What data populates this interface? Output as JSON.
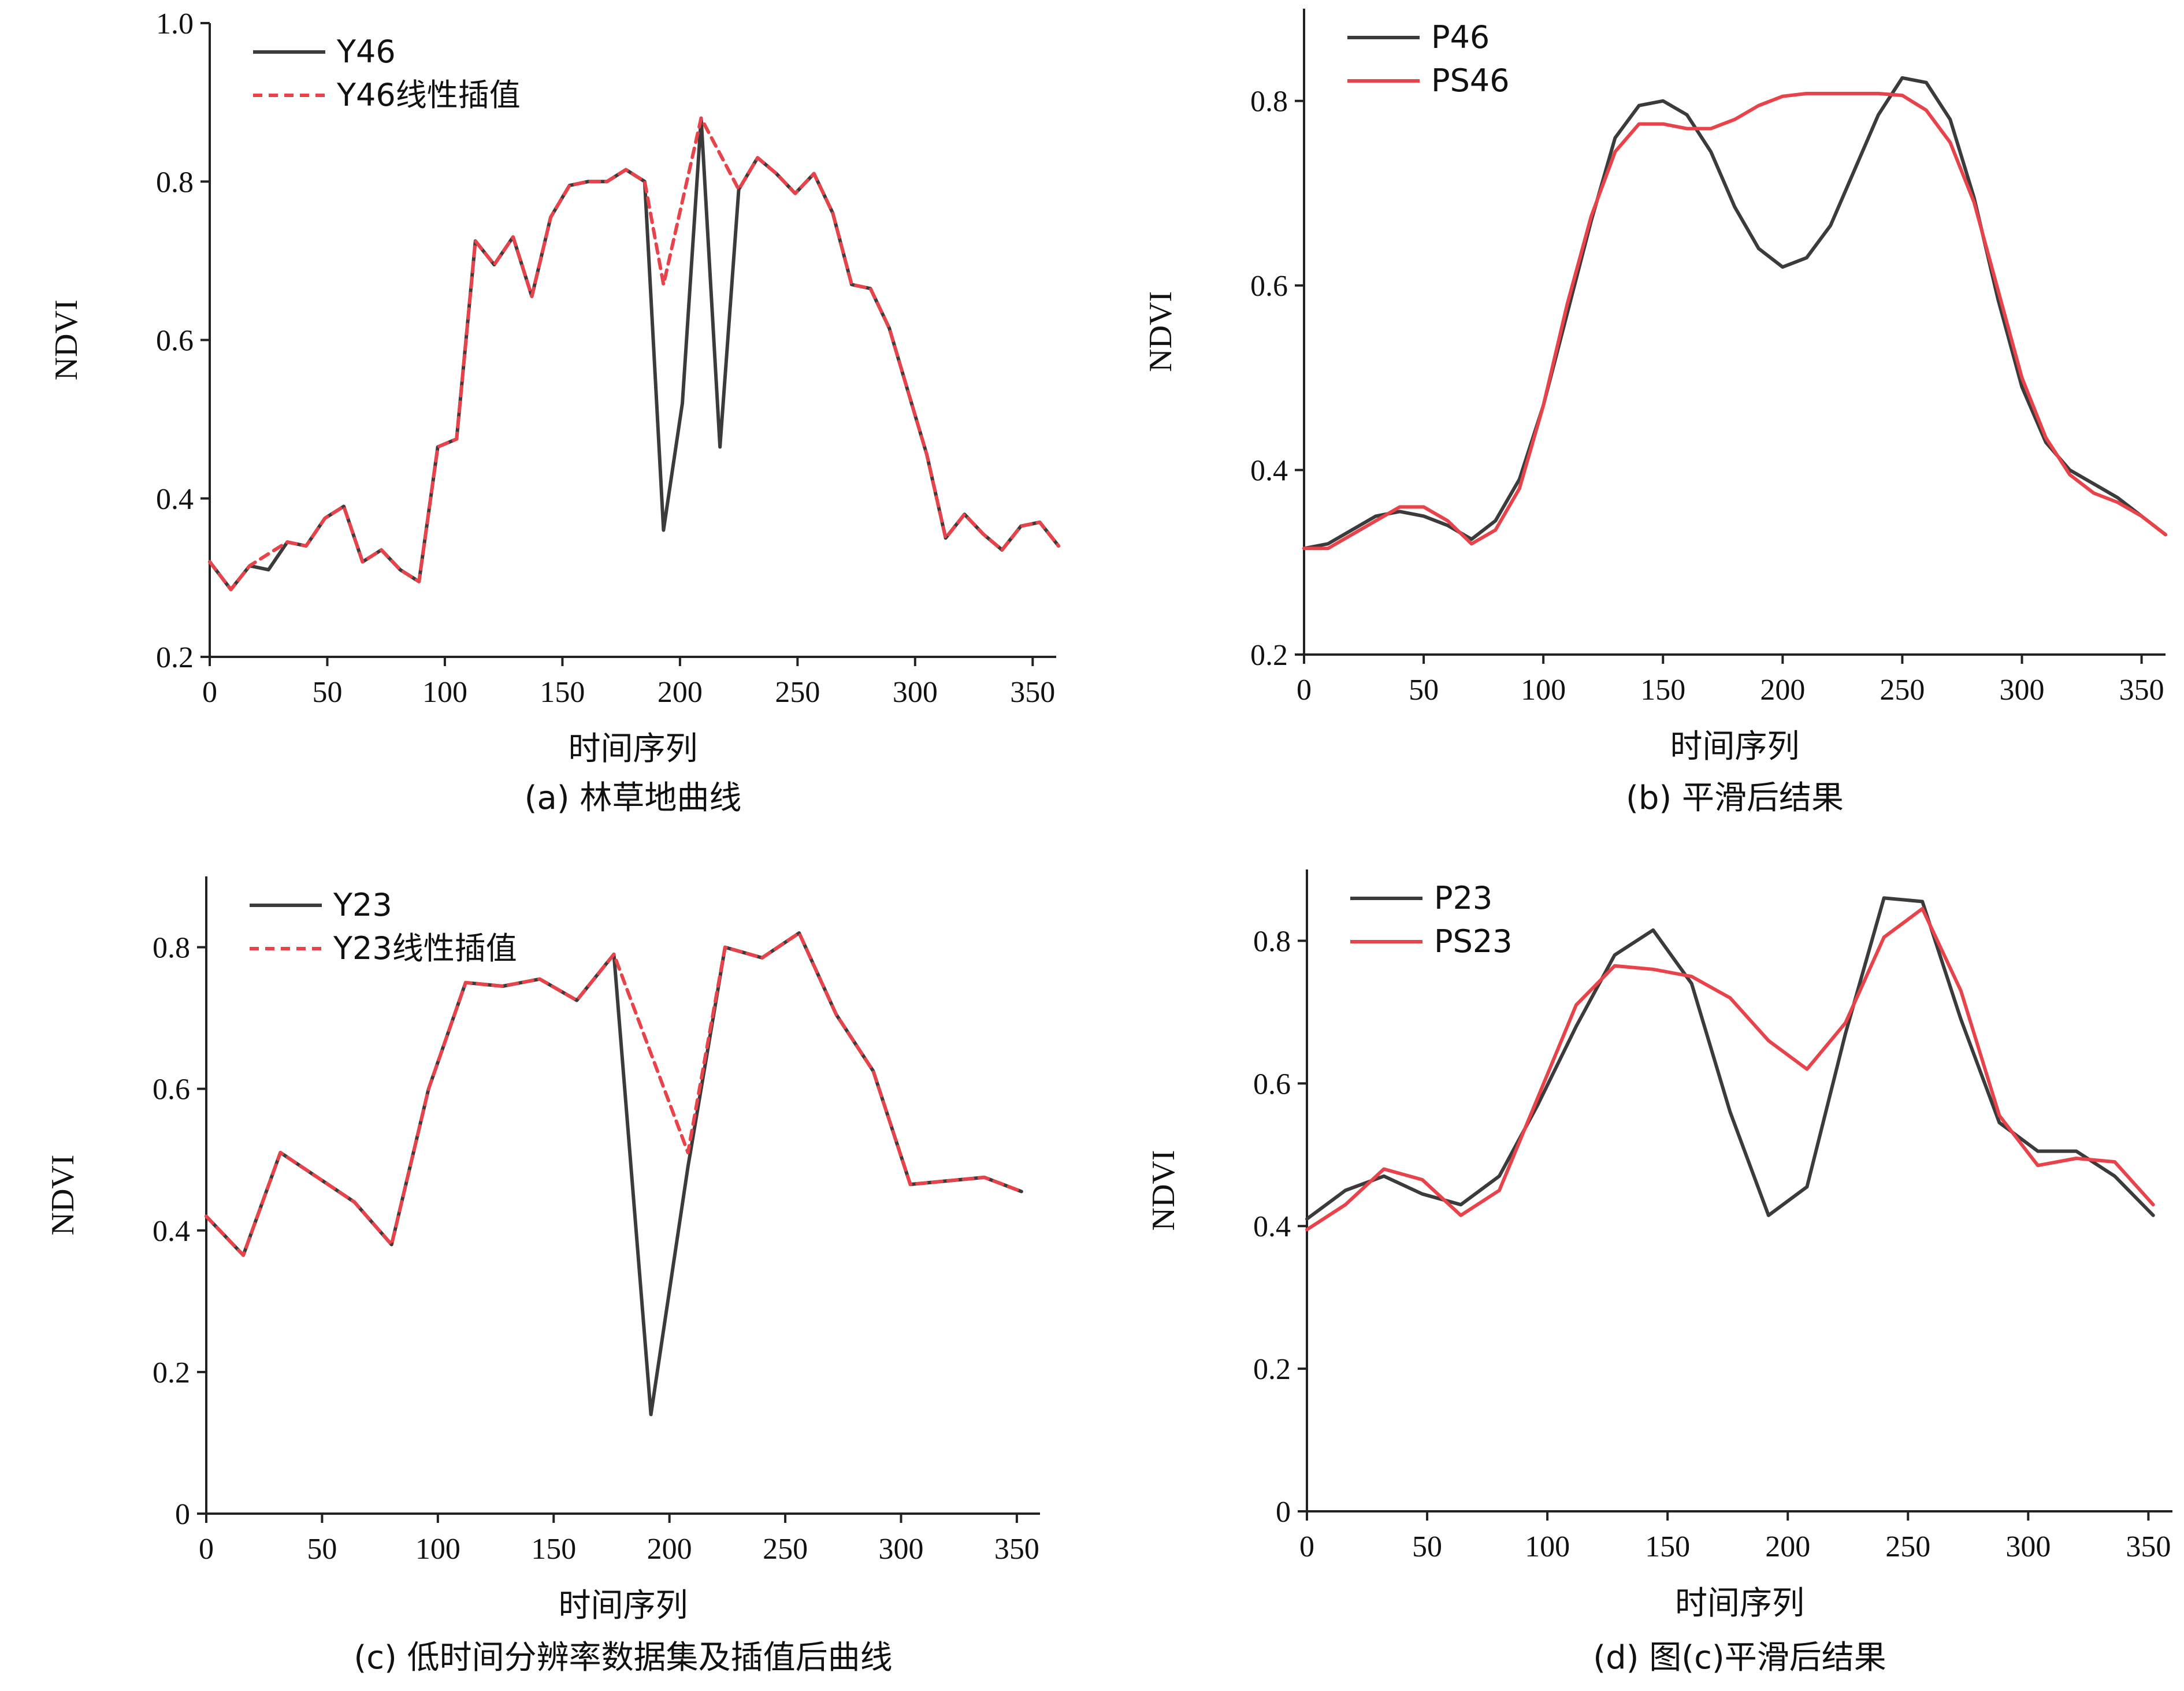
{
  "chart_data": [
    {
      "type": "line",
      "caption": "(a) 林草地曲线",
      "xlabel": "时间序列",
      "ylabel": "NDVI",
      "xlim": [
        0,
        360
      ],
      "ylim": [
        0.2,
        1.0
      ],
      "xticks": [
        "0",
        "50",
        "100",
        "150",
        "200",
        "250",
        "300",
        "350"
      ],
      "yticks": [
        "0.2",
        "0.4",
        "0.6",
        "0.8",
        "1.0"
      ],
      "grid": false,
      "legend_position": "top-left",
      "series": [
        {
          "name": "Y46",
          "color": "#3b3b3b",
          "dash": "solid",
          "x": [
            0,
            9,
            17,
            25,
            33,
            41,
            49,
            57,
            65,
            73,
            81,
            89,
            97,
            105,
            113,
            121,
            129,
            137,
            145,
            153,
            161,
            169,
            177,
            185,
            193,
            201,
            209,
            217,
            225,
            233,
            241,
            249,
            257,
            265,
            273,
            281,
            289,
            297,
            305,
            313,
            321,
            329,
            337,
            345,
            353,
            361
          ],
          "y": [
            0.32,
            0.285,
            0.315,
            0.31,
            0.345,
            0.34,
            0.375,
            0.39,
            0.32,
            0.335,
            0.31,
            0.295,
            0.465,
            0.475,
            0.725,
            0.695,
            0.73,
            0.655,
            0.755,
            0.795,
            0.8,
            0.8,
            0.815,
            0.8,
            0.36,
            0.52,
            0.88,
            0.465,
            0.79,
            0.83,
            0.81,
            0.785,
            0.81,
            0.76,
            0.67,
            0.665,
            0.615,
            0.535,
            0.455,
            0.35,
            0.38,
            0.355,
            0.335,
            0.365,
            0.37,
            0.34
          ]
        },
        {
          "name": "Y46线性插值",
          "color": "#e8434a",
          "dash": "dashed",
          "x": [
            0,
            9,
            17,
            25,
            33,
            41,
            49,
            57,
            65,
            73,
            81,
            89,
            97,
            105,
            113,
            121,
            129,
            137,
            145,
            153,
            161,
            169,
            177,
            185,
            193,
            201,
            209,
            217,
            225,
            233,
            241,
            249,
            257,
            265,
            273,
            281,
            289,
            297,
            305,
            313,
            321,
            329,
            337,
            345,
            353,
            361
          ],
          "y": [
            0.32,
            0.285,
            0.315,
            0.33,
            0.345,
            0.34,
            0.375,
            0.39,
            0.32,
            0.335,
            0.31,
            0.295,
            0.465,
            0.475,
            0.725,
            0.695,
            0.73,
            0.655,
            0.755,
            0.795,
            0.8,
            0.8,
            0.815,
            0.8,
            0.67,
            0.775,
            0.88,
            0.835,
            0.79,
            0.83,
            0.81,
            0.785,
            0.81,
            0.76,
            0.67,
            0.665,
            0.615,
            0.535,
            0.455,
            0.35,
            0.38,
            0.355,
            0.335,
            0.365,
            0.37,
            0.34
          ]
        }
      ]
    },
    {
      "type": "line",
      "caption": "(b) 平滑后结果",
      "xlabel": "时间序列",
      "ylabel": "NDVI",
      "xlim": [
        0,
        360
      ],
      "ylim": [
        0.2,
        0.9
      ],
      "xticks": [
        "0",
        "50",
        "100",
        "150",
        "200",
        "250",
        "300",
        "350"
      ],
      "yticks": [
        "0.2",
        "0.4",
        "0.6",
        "0.8"
      ],
      "grid": false,
      "legend_position": "top-left",
      "series": [
        {
          "name": "P46",
          "color": "#3b3b3b",
          "dash": "solid",
          "x": [
            0,
            10,
            20,
            30,
            40,
            50,
            60,
            70,
            80,
            90,
            100,
            110,
            120,
            130,
            140,
            150,
            160,
            170,
            180,
            190,
            200,
            210,
            220,
            230,
            240,
            250,
            260,
            270,
            280,
            290,
            300,
            310,
            320,
            330,
            340,
            350,
            360
          ],
          "y": [
            0.315,
            0.32,
            0.335,
            0.35,
            0.355,
            0.35,
            0.34,
            0.325,
            0.345,
            0.39,
            0.47,
            0.57,
            0.67,
            0.76,
            0.795,
            0.8,
            0.785,
            0.745,
            0.685,
            0.64,
            0.62,
            0.63,
            0.665,
            0.725,
            0.785,
            0.825,
            0.82,
            0.78,
            0.695,
            0.585,
            0.49,
            0.43,
            0.4,
            0.385,
            0.37,
            0.35,
            0.33
          ]
        },
        {
          "name": "PS46",
          "color": "#e8434a",
          "dash": "solid",
          "x": [
            0,
            10,
            20,
            30,
            40,
            50,
            60,
            70,
            80,
            90,
            100,
            110,
            120,
            130,
            140,
            150,
            160,
            170,
            180,
            190,
            200,
            210,
            220,
            230,
            240,
            250,
            260,
            270,
            280,
            290,
            300,
            310,
            320,
            330,
            340,
            350,
            360
          ],
          "y": [
            0.315,
            0.315,
            0.33,
            0.345,
            0.36,
            0.36,
            0.345,
            0.32,
            0.335,
            0.38,
            0.47,
            0.58,
            0.675,
            0.745,
            0.775,
            0.775,
            0.77,
            0.77,
            0.78,
            0.795,
            0.805,
            0.808,
            0.808,
            0.808,
            0.808,
            0.806,
            0.79,
            0.755,
            0.69,
            0.595,
            0.5,
            0.435,
            0.395,
            0.375,
            0.365,
            0.35,
            0.33
          ]
        }
      ]
    },
    {
      "type": "line",
      "caption": "(c) 低时间分辨率数据集及插值后曲线",
      "xlabel": "时间序列",
      "ylabel": "NDVI",
      "xlim": [
        0,
        360
      ],
      "ylim": [
        0,
        0.9
      ],
      "xticks": [
        "0",
        "50",
        "100",
        "150",
        "200",
        "250",
        "300",
        "350"
      ],
      "yticks": [
        "0",
        "0.2",
        "0.4",
        "0.6",
        "0.8"
      ],
      "grid": false,
      "legend_position": "top-left",
      "series": [
        {
          "name": "Y23",
          "color": "#3b3b3b",
          "dash": "solid",
          "x": [
            0,
            16,
            32,
            48,
            64,
            80,
            96,
            112,
            128,
            144,
            160,
            176,
            192,
            208,
            224,
            240,
            256,
            272,
            288,
            304,
            320,
            336,
            352
          ],
          "y": [
            0.42,
            0.365,
            0.51,
            0.475,
            0.44,
            0.38,
            0.6,
            0.75,
            0.745,
            0.755,
            0.725,
            0.79,
            0.14,
            0.49,
            0.8,
            0.785,
            0.82,
            0.705,
            0.625,
            0.465,
            0.47,
            0.475,
            0.455
          ]
        },
        {
          "name": "Y23线性插值",
          "color": "#e8434a",
          "dash": "dashed",
          "x": [
            0,
            16,
            32,
            48,
            64,
            80,
            96,
            112,
            128,
            144,
            160,
            176,
            192,
            208,
            224,
            240,
            256,
            272,
            288,
            304,
            320,
            336,
            352
          ],
          "y": [
            0.42,
            0.365,
            0.51,
            0.475,
            0.44,
            0.38,
            0.6,
            0.75,
            0.745,
            0.755,
            0.725,
            0.79,
            0.65,
            0.51,
            0.8,
            0.785,
            0.82,
            0.705,
            0.625,
            0.465,
            0.47,
            0.475,
            0.455
          ]
        }
      ]
    },
    {
      "type": "line",
      "caption": "(d) 图(c)平滑后结果",
      "xlabel": "时间序列",
      "ylabel": "NDVI",
      "xlim": [
        0,
        360
      ],
      "ylim": [
        0,
        0.9
      ],
      "xticks": [
        "0",
        "50",
        "100",
        "150",
        "200",
        "250",
        "300",
        "350"
      ],
      "yticks": [
        "0",
        "0.2",
        "0.4",
        "0.6",
        "0.8"
      ],
      "grid": false,
      "legend_position": "top-left",
      "series": [
        {
          "name": "P23",
          "color": "#3b3b3b",
          "dash": "solid",
          "x": [
            0,
            16,
            32,
            48,
            64,
            80,
            96,
            112,
            128,
            144,
            160,
            176,
            192,
            208,
            224,
            240,
            256,
            272,
            288,
            304,
            320,
            336,
            352
          ],
          "y": [
            0.41,
            0.45,
            0.47,
            0.445,
            0.43,
            0.47,
            0.57,
            0.68,
            0.78,
            0.815,
            0.74,
            0.56,
            0.415,
            0.455,
            0.67,
            0.86,
            0.855,
            0.69,
            0.545,
            0.505,
            0.505,
            0.47,
            0.415
          ]
        },
        {
          "name": "PS23",
          "color": "#e8434a",
          "dash": "solid",
          "x": [
            0,
            16,
            32,
            48,
            64,
            80,
            96,
            112,
            128,
            144,
            160,
            176,
            192,
            208,
            224,
            240,
            256,
            272,
            288,
            304,
            320,
            336,
            352
          ],
          "y": [
            0.395,
            0.43,
            0.48,
            0.465,
            0.415,
            0.45,
            0.58,
            0.71,
            0.765,
            0.76,
            0.75,
            0.72,
            0.66,
            0.62,
            0.685,
            0.805,
            0.845,
            0.73,
            0.555,
            0.485,
            0.495,
            0.49,
            0.43
          ]
        }
      ]
    }
  ]
}
